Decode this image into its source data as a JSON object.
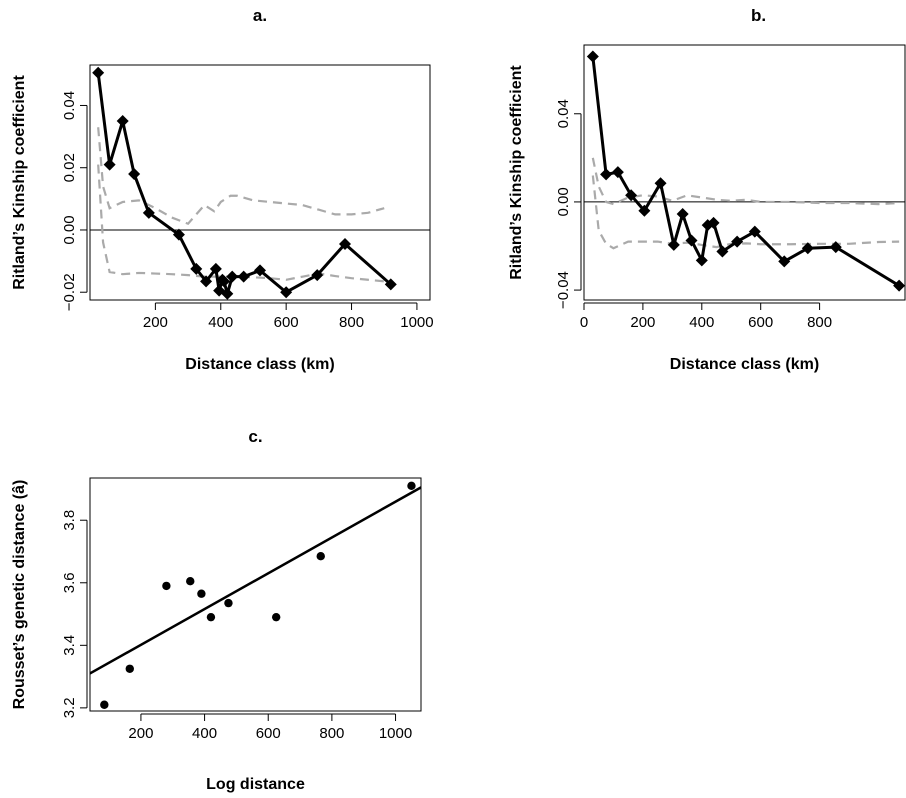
{
  "chart_data": [
    {
      "panel": "a",
      "type": "line",
      "title": "a.",
      "xlabel": "Distance class (km)",
      "ylabel": "Ritland’s Kinship coefficient",
      "xlim": [
        0,
        1040
      ],
      "ylim": [
        -0.0225,
        0.053
      ],
      "xticks": [
        200,
        400,
        600,
        800,
        1000
      ],
      "yticks": [
        -0.02,
        0.0,
        0.02,
        0.04
      ],
      "ytick_labels": [
        "−0.02",
        "0.00",
        "0.02",
        "0.04"
      ],
      "reference_line": 0,
      "series": [
        {
          "role": "observed",
          "style": "solid-black-diamond",
          "x": [
            25,
            60,
            100,
            135,
            180,
            272,
            325,
            355,
            385,
            395,
            405,
            410,
            420,
            435,
            470,
            520,
            600,
            695,
            780,
            920
          ],
          "y": [
            0.0505,
            0.021,
            0.035,
            0.018,
            0.0055,
            -0.0015,
            -0.0125,
            -0.0165,
            -0.0125,
            -0.0195,
            -0.016,
            -0.0165,
            -0.0205,
            -0.015,
            -0.015,
            -0.013,
            -0.02,
            -0.0145,
            -0.0045,
            -0.0175
          ]
        },
        {
          "role": "upper-envelope",
          "style": "dashed-gray",
          "x": [
            25,
            40,
            60,
            100,
            150,
            200,
            250,
            300,
            350,
            380,
            400,
            430,
            450,
            500,
            550,
            600,
            650,
            700,
            750,
            800,
            850,
            900
          ],
          "y": [
            0.033,
            0.014,
            0.007,
            0.009,
            0.0095,
            0.007,
            0.004,
            0.002,
            0.008,
            0.006,
            0.009,
            0.011,
            0.011,
            0.0095,
            0.009,
            0.0085,
            0.008,
            0.0065,
            0.005,
            0.005,
            0.0055,
            0.007
          ]
        },
        {
          "role": "lower-envelope",
          "style": "dashed-gray",
          "x": [
            25,
            40,
            60,
            100,
            150,
            200,
            250,
            300,
            350,
            400,
            450,
            500,
            550,
            600,
            650,
            700,
            750,
            800,
            850,
            900
          ],
          "y": [
            0.021,
            -0.004,
            -0.0135,
            -0.0142,
            -0.0138,
            -0.014,
            -0.0142,
            -0.0145,
            -0.015,
            -0.015,
            -0.015,
            -0.0152,
            -0.0155,
            -0.016,
            -0.015,
            -0.014,
            -0.0148,
            -0.0155,
            -0.016,
            -0.0165
          ]
        }
      ]
    },
    {
      "panel": "b",
      "type": "line",
      "title": "b.",
      "xlabel": "Distance class (km)",
      "ylabel": "Ritland’s Kinship coefficient",
      "xlim": [
        0,
        1090
      ],
      "ylim": [
        -0.0445,
        0.0712
      ],
      "xticks": [
        0,
        200,
        400,
        600,
        800
      ],
      "yticks": [
        -0.04,
        0.0,
        0.04
      ],
      "ytick_labels": [
        "−0.04",
        "0.00",
        "0.04"
      ],
      "reference_line": 0,
      "series": [
        {
          "role": "observed",
          "style": "solid-black-diamond",
          "x": [
            30,
            75,
            115,
            160,
            205,
            260,
            305,
            335,
            365,
            400,
            420,
            440,
            470,
            520,
            580,
            680,
            760,
            855,
            1070
          ],
          "y": [
            0.066,
            0.0125,
            0.0135,
            0.003,
            -0.004,
            0.0085,
            -0.0195,
            -0.0055,
            -0.0175,
            -0.0265,
            -0.0105,
            -0.0095,
            -0.0225,
            -0.018,
            -0.0135,
            -0.027,
            -0.021,
            -0.0205,
            -0.038
          ]
        },
        {
          "role": "upper-envelope",
          "style": "dashed-gray",
          "x": [
            30,
            50,
            75,
            100,
            150,
            200,
            250,
            300,
            350,
            400,
            450,
            500,
            550,
            600,
            700,
            800,
            900,
            1000,
            1070
          ],
          "y": [
            0.02,
            0.007,
            0.0,
            -0.001,
            0.002,
            0.003,
            0.0025,
            0.0005,
            0.003,
            0.002,
            0.001,
            0.0005,
            0.001,
            0.0,
            0.0,
            -0.0005,
            -0.0005,
            -0.001,
            -0.0005
          ]
        },
        {
          "role": "lower-envelope",
          "style": "dashed-gray",
          "x": [
            30,
            50,
            75,
            100,
            150,
            200,
            250,
            300,
            350,
            400,
            450,
            500,
            550,
            600,
            700,
            800,
            900,
            1000,
            1070
          ],
          "y": [
            0.012,
            -0.013,
            -0.019,
            -0.021,
            -0.018,
            -0.018,
            -0.018,
            -0.019,
            -0.0185,
            -0.0195,
            -0.0205,
            -0.019,
            -0.0188,
            -0.0192,
            -0.0192,
            -0.019,
            -0.019,
            -0.0182,
            -0.018
          ]
        }
      ]
    },
    {
      "panel": "c",
      "type": "scatter",
      "title": "c.",
      "xlabel": "Log distance",
      "ylabel": "Rousset’s genetic distance (â)",
      "xlim": [
        40,
        1080
      ],
      "ylim": [
        3.19,
        3.935
      ],
      "xticks": [
        200,
        400,
        600,
        800,
        1000
      ],
      "yticks": [
        3.2,
        3.4,
        3.6,
        3.8
      ],
      "ytick_labels": [
        "3.2",
        "3.4",
        "3.6",
        "3.8"
      ],
      "series": [
        {
          "role": "points",
          "x": [
            85,
            165,
            280,
            355,
            390,
            420,
            475,
            625,
            765,
            1050
          ],
          "y": [
            3.21,
            3.325,
            3.59,
            3.605,
            3.565,
            3.49,
            3.535,
            3.49,
            3.685,
            3.91
          ]
        },
        {
          "role": "regression-line",
          "x": [
            40,
            1080
          ],
          "y": [
            3.31,
            3.905
          ]
        }
      ]
    }
  ]
}
